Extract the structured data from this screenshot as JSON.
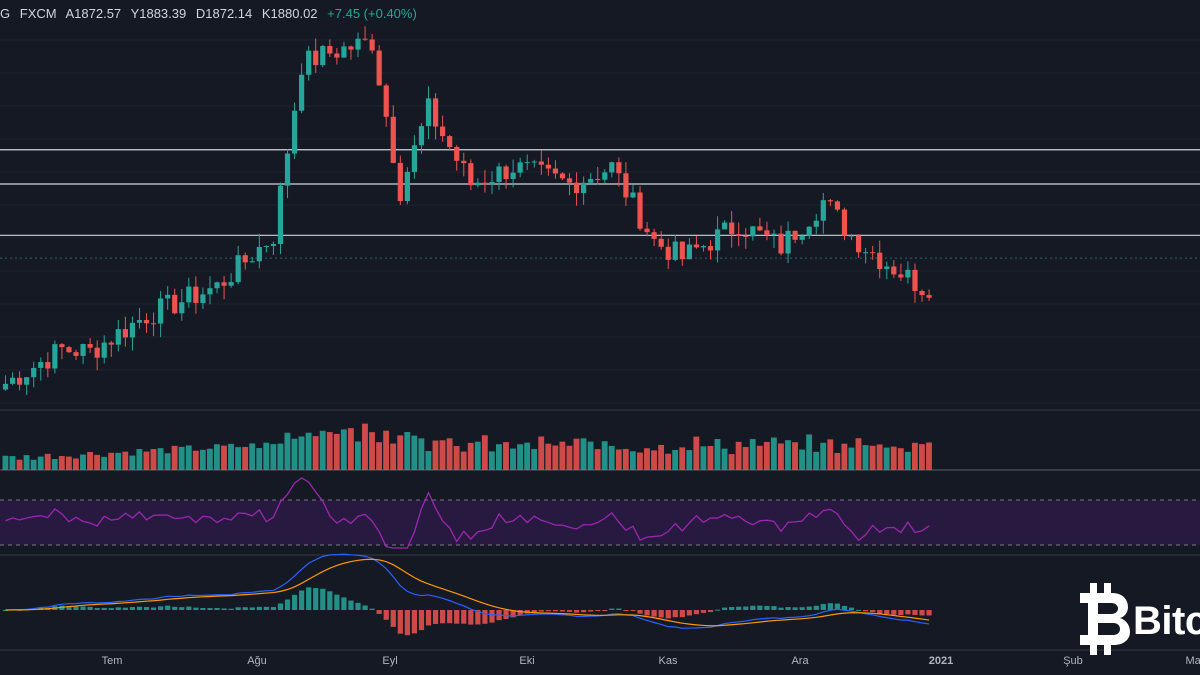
{
  "header": {
    "symbol": "G",
    "exchange": "FXCM",
    "open": "A1872.57",
    "high": "Y1883.39",
    "low": "D1872.14",
    "close": "K1880.02",
    "change": "+7.45 (+0.40%)"
  },
  "logo": {
    "text": "Bitc"
  },
  "colors": {
    "background": "#151924",
    "up": "#26a69a",
    "down": "#ef5350",
    "rsi_line": "#9c27b0",
    "rsi_band": "#2a1a44",
    "macd_line": "#2962ff",
    "signal_line": "#ff9800",
    "level_lines": "#d1d4dc"
  },
  "chart_data": {
    "type": "candlestick",
    "x_labels": [
      "Tem",
      "Ağu",
      "Eyl",
      "Eki",
      "Kas",
      "Ara",
      "2021",
      "Şub",
      "Mar"
    ],
    "bar_count": 132,
    "close_path": [
      [
        0,
        1770
      ],
      [
        8,
        1800
      ],
      [
        12,
        1798
      ],
      [
        20,
        1830
      ],
      [
        30,
        1855
      ],
      [
        38,
        1900
      ],
      [
        42,
        2050
      ],
      [
        46,
        2060
      ],
      [
        52,
        2070
      ],
      [
        56,
        1940
      ],
      [
        60,
        2010
      ],
      [
        66,
        1945
      ],
      [
        72,
        1960
      ],
      [
        80,
        1945
      ],
      [
        86,
        1960
      ],
      [
        92,
        1895
      ],
      [
        96,
        1880
      ],
      [
        104,
        1910
      ],
      [
        110,
        1890
      ],
      [
        116,
        1930
      ],
      [
        120,
        1900
      ],
      [
        124,
        1880
      ],
      [
        130,
        1855
      ],
      [
        134,
        1860
      ],
      [
        138,
        1780
      ],
      [
        142,
        1820
      ],
      [
        146,
        1805
      ],
      [
        150,
        1860
      ],
      [
        156,
        1870
      ],
      [
        160,
        1880
      ]
    ],
    "level_lines": [
      1975,
      1945,
      1900
    ],
    "current_price": 1880.02,
    "volume_pattern": "rising into August, steady afterward",
    "rsi": {
      "upper_band": 70,
      "lower_band": 30
    },
    "macd": {
      "lines": [
        "macd",
        "signal"
      ],
      "histogram": true
    }
  }
}
